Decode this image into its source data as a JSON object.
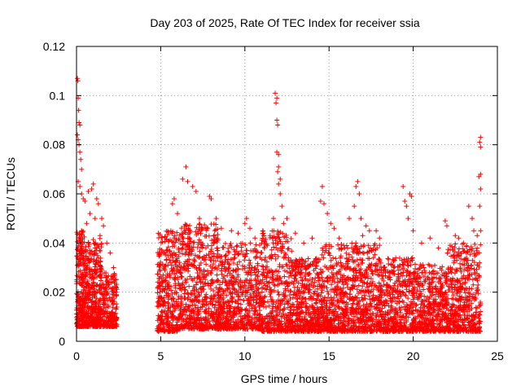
{
  "chart_data": {
    "type": "scatter",
    "title": "Day 203 of 2025, Rate Of TEC Index for receiver ssia",
    "xlabel": "GPS time / hours",
    "ylabel": "ROTI / TECUs",
    "xlim": [
      0,
      25
    ],
    "ylim": [
      0,
      0.12
    ],
    "xticks": [
      0,
      5,
      10,
      15,
      20,
      25
    ],
    "xtick_labels": [
      "0",
      "5",
      "10",
      "15",
      "20",
      "25"
    ],
    "yticks": [
      0,
      0.02,
      0.04,
      0.06,
      0.08,
      0.1,
      0.12
    ],
    "ytick_labels": [
      "0",
      "0.02",
      "0.04",
      "0.06",
      "0.08",
      "0.1",
      "0.12"
    ],
    "grid": true,
    "marker": "plus",
    "color": "#ff0000",
    "series": [
      {
        "points": [
          [
            0.05,
            0.107
          ],
          [
            0.08,
            0.106
          ],
          [
            0.1,
            0.099
          ],
          [
            0.12,
            0.094
          ],
          [
            0.15,
            0.089
          ],
          [
            0.2,
            0.088
          ],
          [
            0.05,
            0.084
          ],
          [
            0.1,
            0.082
          ],
          [
            0.15,
            0.08
          ],
          [
            0.2,
            0.077
          ],
          [
            0.25,
            0.074
          ],
          [
            0.3,
            0.07
          ],
          [
            0.1,
            0.065
          ],
          [
            0.2,
            0.063
          ],
          [
            0.3,
            0.06
          ],
          [
            0.4,
            0.058
          ],
          [
            0.5,
            0.057
          ],
          [
            0.7,
            0.061
          ],
          [
            0.9,
            0.062
          ],
          [
            1.0,
            0.064
          ],
          [
            1.2,
            0.058
          ],
          [
            1.3,
            0.056
          ],
          [
            1.5,
            0.05
          ],
          [
            1.6,
            0.047
          ],
          [
            0.3,
            0.045
          ],
          [
            0.6,
            0.048
          ],
          [
            0.8,
            0.052
          ],
          [
            1.1,
            0.05
          ],
          [
            1.4,
            0.043
          ],
          [
            1.8,
            0.04
          ],
          [
            2.0,
            0.036
          ],
          [
            2.2,
            0.03
          ],
          [
            2.3,
            0.025
          ],
          [
            6.5,
            0.071
          ],
          [
            6.3,
            0.066
          ],
          [
            6.6,
            0.065
          ],
          [
            6.9,
            0.063
          ],
          [
            7.1,
            0.061
          ],
          [
            5.8,
            0.058
          ],
          [
            5.7,
            0.056
          ],
          [
            7.9,
            0.059
          ],
          [
            8.0,
            0.058
          ],
          [
            6.0,
            0.052
          ],
          [
            7.3,
            0.05
          ],
          [
            8.3,
            0.05
          ],
          [
            8.6,
            0.046
          ],
          [
            9.2,
            0.045
          ],
          [
            9.6,
            0.044
          ],
          [
            10.0,
            0.048
          ],
          [
            10.1,
            0.05
          ],
          [
            10.3,
            0.046
          ],
          [
            10.6,
            0.042
          ],
          [
            11.0,
            0.04
          ],
          [
            11.5,
            0.043
          ],
          [
            11.8,
            0.101
          ],
          [
            11.9,
            0.099
          ],
          [
            11.85,
            0.097
          ],
          [
            11.9,
            0.09
          ],
          [
            11.95,
            0.088
          ],
          [
            11.9,
            0.077
          ],
          [
            12.0,
            0.076
          ],
          [
            12.0,
            0.071
          ],
          [
            11.95,
            0.069
          ],
          [
            12.1,
            0.066
          ],
          [
            12.0,
            0.064
          ],
          [
            12.1,
            0.06
          ],
          [
            12.2,
            0.055
          ],
          [
            11.7,
            0.05
          ],
          [
            12.3,
            0.048
          ],
          [
            12.5,
            0.05
          ],
          [
            13.0,
            0.044
          ],
          [
            13.5,
            0.04
          ],
          [
            14.0,
            0.042
          ],
          [
            14.6,
            0.063
          ],
          [
            14.5,
            0.057
          ],
          [
            14.7,
            0.056
          ],
          [
            14.9,
            0.052
          ],
          [
            15.1,
            0.048
          ],
          [
            15.3,
            0.046
          ],
          [
            15.6,
            0.042
          ],
          [
            16.2,
            0.05
          ],
          [
            16.7,
            0.065
          ],
          [
            16.6,
            0.063
          ],
          [
            16.8,
            0.06
          ],
          [
            16.5,
            0.055
          ],
          [
            16.9,
            0.05
          ],
          [
            17.2,
            0.047
          ],
          [
            17.4,
            0.045
          ],
          [
            17.0,
            0.043
          ],
          [
            17.8,
            0.045
          ],
          [
            18.0,
            0.042
          ],
          [
            19.4,
            0.063
          ],
          [
            19.5,
            0.057
          ],
          [
            19.6,
            0.055
          ],
          [
            19.8,
            0.06
          ],
          [
            19.9,
            0.059
          ],
          [
            19.7,
            0.05
          ],
          [
            20.0,
            0.045
          ],
          [
            20.5,
            0.04
          ],
          [
            21.0,
            0.042
          ],
          [
            21.5,
            0.038
          ],
          [
            21.9,
            0.049
          ],
          [
            22.0,
            0.047
          ],
          [
            22.5,
            0.043
          ],
          [
            22.7,
            0.042
          ],
          [
            23.0,
            0.04
          ],
          [
            23.3,
            0.055
          ],
          [
            23.5,
            0.05
          ],
          [
            23.6,
            0.045
          ],
          [
            23.8,
            0.043
          ],
          [
            24.0,
            0.083
          ],
          [
            23.95,
            0.081
          ],
          [
            24.0,
            0.079
          ],
          [
            24.0,
            0.068
          ],
          [
            23.9,
            0.067
          ],
          [
            24.0,
            0.062
          ],
          [
            23.95,
            0.055
          ],
          [
            24.0,
            0.045
          ]
        ],
        "bands": [
          {
            "x": [
              0.0,
              0.5
            ],
            "ylow": 0.006,
            "yhigh": 0.045,
            "count": 260
          },
          {
            "x": [
              0.5,
              1.5
            ],
            "ylow": 0.006,
            "yhigh": 0.042,
            "count": 380
          },
          {
            "x": [
              1.5,
              2.4
            ],
            "ylow": 0.006,
            "yhigh": 0.028,
            "count": 220
          },
          {
            "x": [
              4.8,
              6.0
            ],
            "ylow": 0.004,
            "yhigh": 0.045,
            "count": 330
          },
          {
            "x": [
              6.0,
              8.5
            ],
            "ylow": 0.005,
            "yhigh": 0.048,
            "count": 620
          },
          {
            "x": [
              8.5,
              11.0
            ],
            "ylow": 0.005,
            "yhigh": 0.04,
            "count": 560
          },
          {
            "x": [
              11.0,
              12.8
            ],
            "ylow": 0.004,
            "yhigh": 0.045,
            "count": 420
          },
          {
            "x": [
              12.8,
              14.5
            ],
            "ylow": 0.004,
            "yhigh": 0.034,
            "count": 420
          },
          {
            "x": [
              14.5,
              16.0
            ],
            "ylow": 0.004,
            "yhigh": 0.04,
            "count": 380
          },
          {
            "x": [
              16.0,
              18.0
            ],
            "ylow": 0.004,
            "yhigh": 0.04,
            "count": 460
          },
          {
            "x": [
              18.0,
              20.0
            ],
            "ylow": 0.004,
            "yhigh": 0.034,
            "count": 440
          },
          {
            "x": [
              20.0,
              22.0
            ],
            "ylow": 0.004,
            "yhigh": 0.032,
            "count": 440
          },
          {
            "x": [
              22.0,
              24.0
            ],
            "ylow": 0.004,
            "yhigh": 0.04,
            "count": 460
          }
        ]
      }
    ]
  }
}
